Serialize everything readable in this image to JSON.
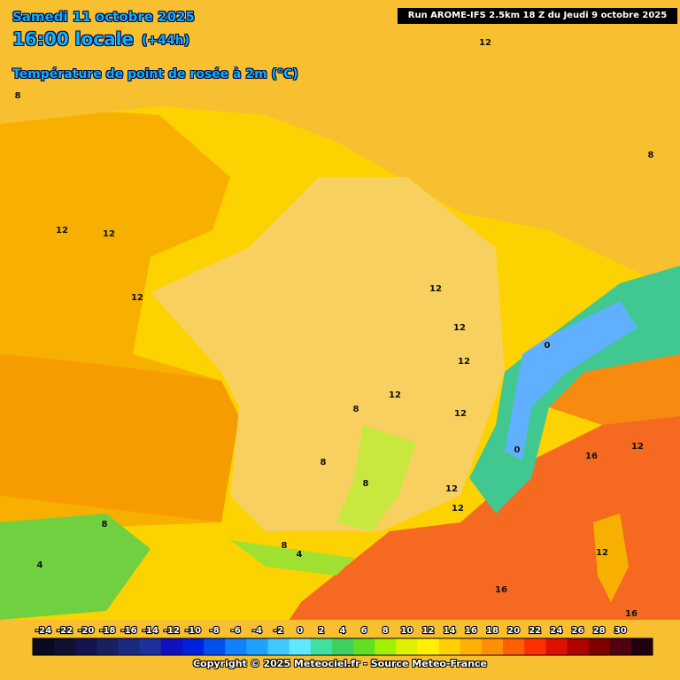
{
  "header": {
    "date": "Samedi 11 octobre 2025",
    "time": "16:00 locale",
    "lead": "(+44h)",
    "field": "Température de point de rosée à 2m (°C)",
    "run": "Run AROME-IFS 2.5km 18 Z du Jeudi 9 octobre 2025"
  },
  "contour_labels": [
    "12",
    "8",
    "8",
    "12",
    "12",
    "12",
    "12",
    "12",
    "12",
    "12",
    "8",
    "12",
    "12",
    "16",
    "8",
    "0",
    "0",
    "8",
    "12",
    "12",
    "8",
    "8",
    "4",
    "4",
    "12",
    "16",
    "16"
  ],
  "colorbar": {
    "labels": [
      -24,
      -22,
      -20,
      -18,
      -16,
      -14,
      -12,
      -10,
      -8,
      -6,
      -4,
      -2,
      0,
      2,
      4,
      6,
      8,
      10,
      12,
      14,
      16,
      18,
      20,
      22,
      24,
      26,
      28,
      30
    ],
    "colors": [
      "#0a0a1e",
      "#101030",
      "#141450",
      "#182060",
      "#1a2a80",
      "#1c30a0",
      "#1010c0",
      "#0020e0",
      "#0050f0",
      "#1080ff",
      "#20a0ff",
      "#40c8ff",
      "#60e8ff",
      "#40e0a0",
      "#40d060",
      "#60e020",
      "#a0f000",
      "#e0f000",
      "#fff000",
      "#ffd000",
      "#ffb000",
      "#ff9000",
      "#ff6000",
      "#ff3000",
      "#e01000",
      "#b00000",
      "#800000",
      "#500010",
      "#200010"
    ]
  },
  "footer": {
    "copyright": "Copyright © 2025 Meteociel.fr - Source Meteo-France"
  }
}
